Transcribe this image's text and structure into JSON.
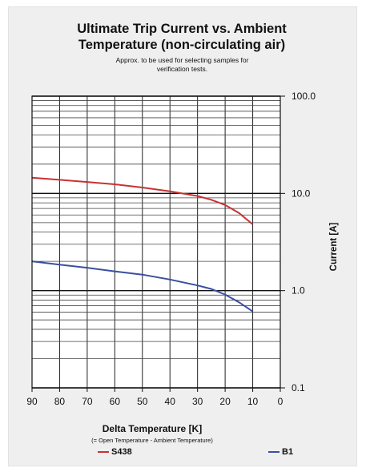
{
  "chart_data": {
    "type": "line",
    "title": "Ultimate Trip Current vs. Ambient Temperature (non-circulating air)",
    "title_lines": [
      "Ultimate Trip Current vs. Ambient",
      "Temperature (non-circulating air)"
    ],
    "subtitle": "Approx. to be used for selecting samples for verification tests.",
    "xlabel": "Delta Temperature [K]",
    "xlabel_note": "(= Open Temperature - Ambient Temperature)",
    "ylabel": "Current [A]",
    "x_ticks": [
      "90",
      "80",
      "70",
      "60",
      "50",
      "40",
      "30",
      "20",
      "10",
      "0"
    ],
    "x_tick_values": [
      90,
      80,
      70,
      60,
      50,
      40,
      30,
      20,
      10,
      0
    ],
    "xlim": [
      90,
      0
    ],
    "y_scale": "log",
    "ylim": [
      0.1,
      100
    ],
    "y_ticks": [
      "0.1",
      "1.0",
      "10.0",
      "100.0"
    ],
    "y_tick_values": [
      0.1,
      1,
      10,
      100
    ],
    "grid": true,
    "legend_position": "bottom",
    "series": [
      {
        "name": "S438",
        "color": "#c83232",
        "x": [
          90,
          80,
          70,
          60,
          50,
          40,
          30,
          25,
          20,
          15,
          10
        ],
        "y": [
          14.5,
          13.8,
          13.1,
          12.4,
          11.5,
          10.5,
          9.4,
          8.6,
          7.6,
          6.3,
          4.8
        ]
      },
      {
        "name": "B1",
        "color": "#3a4fa0",
        "x": [
          90,
          80,
          70,
          60,
          50,
          40,
          30,
          25,
          20,
          15,
          10
        ],
        "y": [
          2.0,
          1.85,
          1.72,
          1.58,
          1.46,
          1.3,
          1.13,
          1.04,
          0.91,
          0.76,
          0.61
        ]
      }
    ]
  }
}
